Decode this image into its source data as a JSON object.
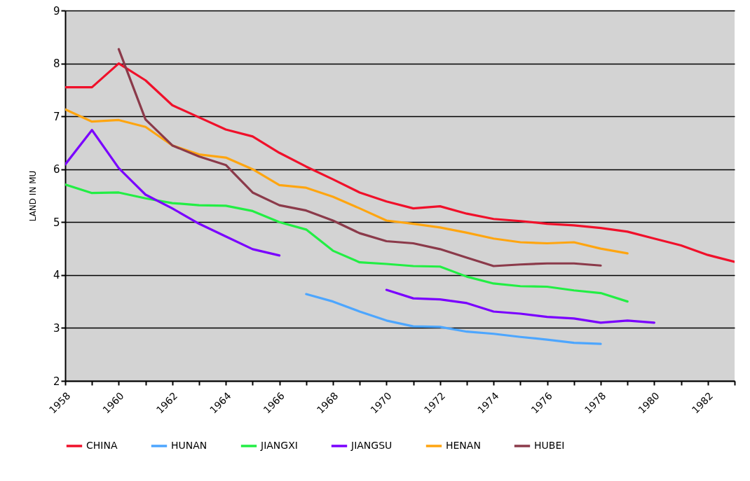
{
  "chart_data": {
    "type": "line",
    "ylabel": "LAND IN MU",
    "x": [
      1958,
      1959,
      1960,
      1961,
      1962,
      1963,
      1964,
      1965,
      1966,
      1967,
      1968,
      1969,
      1970,
      1971,
      1972,
      1973,
      1974,
      1975,
      1976,
      1977,
      1978,
      1979,
      1980,
      1981,
      1982,
      1983
    ],
    "series": [
      {
        "name": "CHINA",
        "color": "#f0102a",
        "values": [
          7.55,
          7.55,
          8.0,
          7.68,
          7.21,
          6.98,
          6.75,
          6.62,
          6.31,
          6.05,
          5.81,
          5.56,
          5.39,
          5.26,
          5.3,
          5.16,
          5.06,
          5.02,
          4.97,
          4.94,
          4.89,
          4.82,
          4.69,
          4.56,
          4.38,
          4.25
        ]
      },
      {
        "name": "HUNAN",
        "color": "#4da6ff",
        "values": [
          null,
          null,
          null,
          null,
          null,
          null,
          null,
          null,
          null,
          3.64,
          3.5,
          3.31,
          3.14,
          3.03,
          3.02,
          2.93,
          2.89,
          2.83,
          2.78,
          2.72,
          2.7,
          null,
          null,
          null,
          null,
          null
        ]
      },
      {
        "name": "JIANGXI",
        "color": "#22ee44",
        "values": [
          5.71,
          5.55,
          5.56,
          5.45,
          5.36,
          5.32,
          5.31,
          5.21,
          5.0,
          4.86,
          4.46,
          4.24,
          4.21,
          4.17,
          4.16,
          3.97,
          3.84,
          3.79,
          3.78,
          3.71,
          3.66,
          3.5,
          null,
          null,
          null,
          null
        ]
      },
      {
        "name": "JIANGSU",
        "color": "#7a00ff",
        "values": [
          6.09,
          6.74,
          6.02,
          5.52,
          5.26,
          4.97,
          4.73,
          4.49,
          4.37,
          null,
          null,
          null,
          3.72,
          3.56,
          3.54,
          3.47,
          3.31,
          3.27,
          3.21,
          3.18,
          3.1,
          3.14,
          3.1,
          null,
          null,
          null
        ]
      },
      {
        "name": "HENAN",
        "color": "#ffa510",
        "values": [
          7.13,
          6.9,
          6.93,
          6.8,
          6.45,
          6.28,
          6.22,
          6.0,
          5.7,
          5.65,
          5.48,
          5.26,
          5.03,
          4.97,
          4.9,
          4.8,
          4.69,
          4.62,
          4.6,
          4.62,
          4.5,
          4.41,
          null,
          null,
          null,
          null
        ]
      },
      {
        "name": "HUBEI",
        "color": "#8b3a4a",
        "values": [
          null,
          null,
          8.27,
          6.94,
          6.45,
          6.24,
          6.08,
          5.56,
          5.32,
          5.22,
          5.03,
          4.79,
          4.64,
          4.6,
          4.49,
          4.33,
          4.17,
          4.2,
          4.22,
          4.22,
          4.18,
          null,
          null,
          null,
          null,
          null
        ]
      }
    ],
    "xlim": [
      1958,
      1983
    ],
    "xticks": [
      1958,
      {
        "value": 1959,
        "label": null
      },
      1960,
      {
        "value": 1961,
        "label": null
      },
      1962,
      {
        "value": 1963,
        "label": null
      },
      1964,
      {
        "value": 1965,
        "label": null
      },
      1966,
      {
        "value": 1967,
        "label": null
      },
      1968,
      {
        "value": 1969,
        "label": null
      },
      1970,
      {
        "value": 1971,
        "label": null
      },
      1972,
      {
        "value": 1973,
        "label": null
      },
      1974,
      {
        "value": 1975,
        "label": null
      },
      1976,
      {
        "value": 1977,
        "label": null
      },
      1978,
      {
        "value": 1979,
        "label": null
      },
      1980,
      {
        "value": 1981,
        "label": null
      },
      1982,
      {
        "value": 1983,
        "label": null
      }
    ],
    "ylim": [
      2,
      9
    ],
    "yticks": [
      2,
      3,
      4,
      5,
      6,
      7,
      8,
      9
    ],
    "grid": "y",
    "legend": "bottom",
    "marker": "none",
    "line_style": "solid"
  }
}
